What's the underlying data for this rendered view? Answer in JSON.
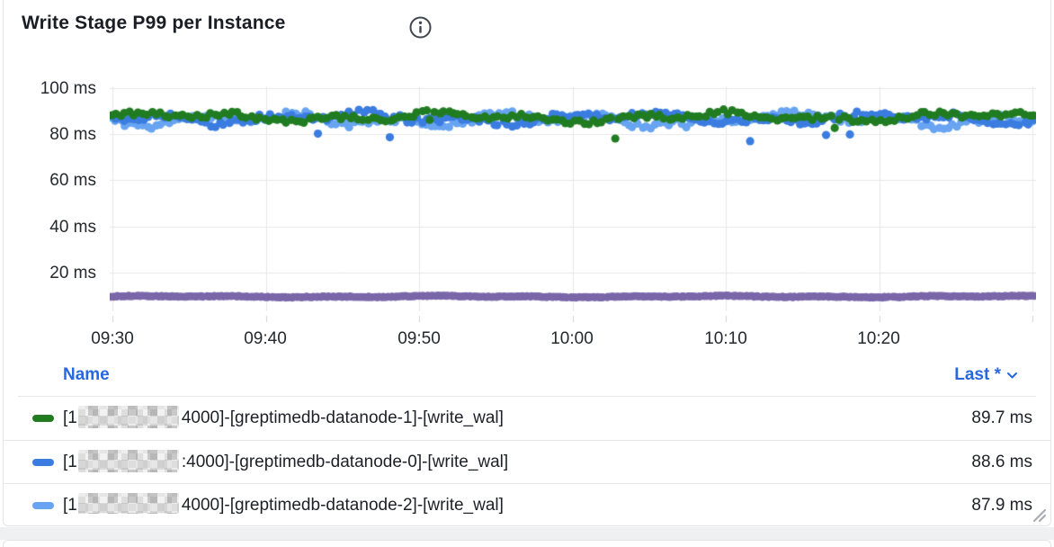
{
  "panel": {
    "title": "Write Stage P99 per Instance",
    "info_icon": "info"
  },
  "legend": {
    "name_header": "Name",
    "value_header": "Last *",
    "rows": [
      {
        "prefix": "[1",
        "masked_ip": true,
        "suffix": "4000]-[greptimedb-datanode-1]-[write_wal]",
        "value": "89.7 ms",
        "color": "#217c21"
      },
      {
        "prefix": "[1",
        "masked_ip": true,
        "suffix": ":4000]-[greptimedb-datanode-0]-[write_wal]",
        "value": "88.6 ms",
        "color": "#3b7ce0"
      },
      {
        "prefix": "[1",
        "masked_ip": true,
        "suffix": "4000]-[greptimedb-datanode-2]-[write_wal]",
        "value": "87.9 ms",
        "color": "#68a4f1"
      }
    ]
  },
  "chart_data": {
    "type": "scatter",
    "title": "Write Stage P99 per Instance",
    "xlabel": "",
    "ylabel": "",
    "y_unit": "ms",
    "ylim": [
      0,
      104
    ],
    "grid": true,
    "legend_position": "bottom-table",
    "x_ticks": [
      "09:30",
      "09:40",
      "09:50",
      "10:00",
      "10:10",
      "10:20"
    ],
    "y_ticks": [
      {
        "label": "100 ms",
        "value": 100
      },
      {
        "label": "80 ms",
        "value": 80
      },
      {
        "label": "60 ms",
        "value": 60
      },
      {
        "label": "40 ms",
        "value": 40
      },
      {
        "label": "20 ms",
        "value": 20
      }
    ],
    "series": [
      {
        "name": "[1█.█.██.██:4000]-[greptimedb-datanode-1]-[write_wal]",
        "color": "#217c21",
        "approx_p99_ms": 87.4,
        "spread_ms": 4.0,
        "last_ms": 89.7
      },
      {
        "name": "[1█.█.██.██:4000]-[greptimedb-datanode-0]-[write_wal]",
        "color": "#3b7ce0",
        "approx_p99_ms": 87.0,
        "spread_ms": 4.5,
        "last_ms": 88.6
      },
      {
        "name": "[1█.█.██.██:4000]-[greptimedb-datanode-2]-[write_wal]",
        "color": "#68a4f1",
        "approx_p99_ms": 86.3,
        "spread_ms": 5.0,
        "last_ms": 87.9
      },
      {
        "name": "",
        "note": "series visible in chart; legend row cut off below panel edge",
        "color": "#7a67a9",
        "approx_p99_ms": 9.5,
        "spread_ms": 0.6
      }
    ],
    "colors": {
      "grid": "#e6e7e9",
      "tick": "#cfd2d6"
    }
  }
}
